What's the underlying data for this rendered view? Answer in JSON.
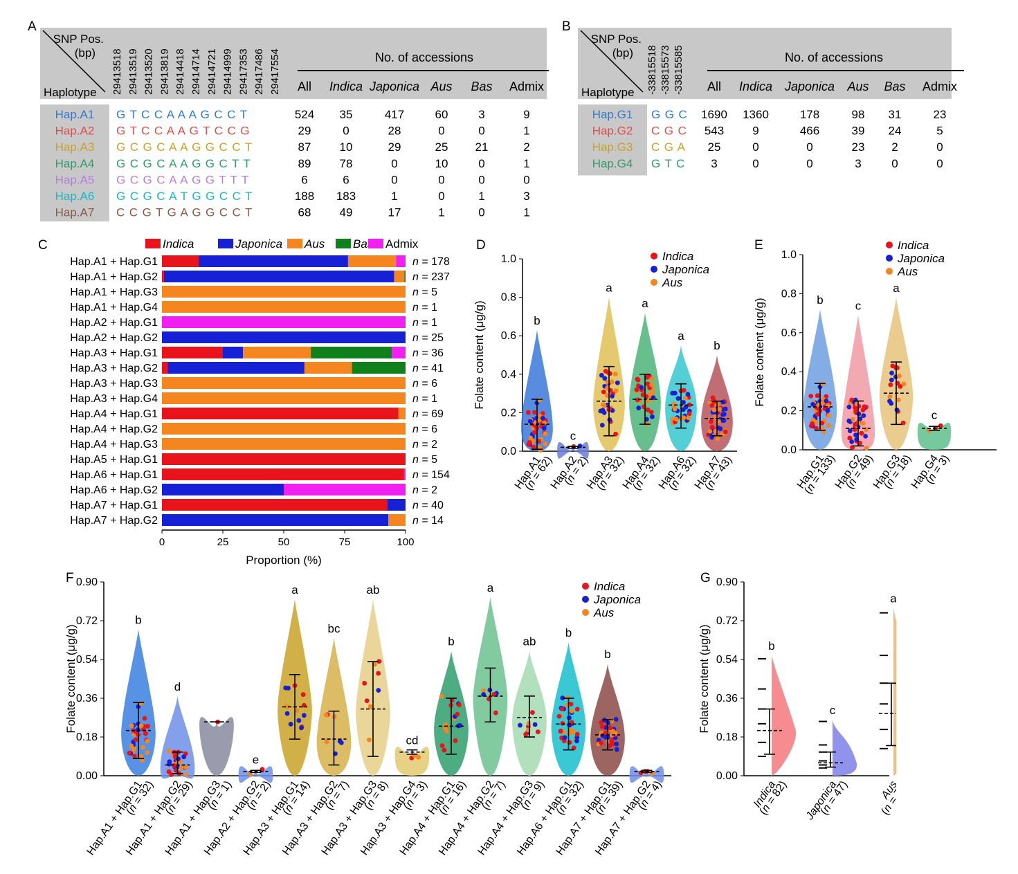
{
  "panel_labels": [
    "A",
    "B",
    "C",
    "D",
    "E",
    "F",
    "G"
  ],
  "legend_italic": [
    "Indica",
    "Japonica",
    "Aus"
  ],
  "colors": {
    "indica": "#e8131b",
    "japonica": "#1620d4",
    "aus": "#f5861f",
    "bas": "#10801a",
    "admix": "#f21ff2",
    "header_gray": "#c8c8c8"
  },
  "tableA": {
    "header_snp": "SNP Pos.",
    "header_bp": "(bp)",
    "header_hap": "Haplotype",
    "positions": [
      "29413518",
      "29413519",
      "29413520",
      "29413819",
      "29414418",
      "29414714",
      "29414721",
      "29414999",
      "29417353",
      "29417486",
      "29417554"
    ],
    "accessions_title": "No. of accessions",
    "columns": [
      "All",
      "Indica",
      "Japonica",
      "Aus",
      "Bas",
      "Admix"
    ],
    "rows": [
      {
        "name": "Hap.A1",
        "color": "#2f7bd4",
        "seq": "G T C C A A A G C C T",
        "vals": [
          "524",
          "35",
          "417",
          "60",
          "3",
          "9"
        ]
      },
      {
        "name": "Hap.A2",
        "color": "#e04d4d",
        "seq": "G T C C A A G T C C G",
        "vals": [
          "29",
          "0",
          "28",
          "0",
          "0",
          "1"
        ]
      },
      {
        "name": "Hap.A3",
        "color": "#c9a227",
        "seq": "G C G C A A G G C C T",
        "vals": [
          "87",
          "10",
          "29",
          "25",
          "21",
          "2"
        ]
      },
      {
        "name": "Hap.A4",
        "color": "#2e9e6b",
        "seq": "G C G C A A G G C T T",
        "vals": [
          "89",
          "78",
          "0",
          "10",
          "0",
          "1"
        ]
      },
      {
        "name": "Hap.A5",
        "color": "#b47fd8",
        "seq": "G C G C A A G G T T T",
        "vals": [
          "6",
          "6",
          "0",
          "0",
          "0",
          "0"
        ]
      },
      {
        "name": "Hap.A6",
        "color": "#17b8c9",
        "seq": "G C G C A T G G C C T",
        "vals": [
          "188",
          "183",
          "1",
          "0",
          "1",
          "3"
        ]
      },
      {
        "name": "Hap.A7",
        "color": "#8b5a4a",
        "seq": "C C G T G A G G C C T",
        "vals": [
          "68",
          "49",
          "17",
          "1",
          "0",
          "1"
        ]
      }
    ]
  },
  "tableB": {
    "header_snp": "SNP Pos.",
    "header_bp": "(bp)",
    "header_hap": "Haplotype",
    "positions": [
      "-33815518",
      "-33815573",
      "-33815585"
    ],
    "accessions_title": "No. of accessions",
    "columns": [
      "All",
      "Indica",
      "Japonica",
      "Aus",
      "Bas",
      "Admix"
    ],
    "rows": [
      {
        "name": "Hap.G1",
        "color": "#2f7bd4",
        "seq": "G G C",
        "vals": [
          "1690",
          "1360",
          "178",
          "98",
          "31",
          "23"
        ]
      },
      {
        "name": "Hap.G2",
        "color": "#e04d4d",
        "seq": "C G C",
        "vals": [
          "543",
          "9",
          "466",
          "39",
          "24",
          "5"
        ]
      },
      {
        "name": "Hap.G3",
        "color": "#c9a227",
        "seq": "C G A",
        "vals": [
          "25",
          "0",
          "0",
          "23",
          "2",
          "0"
        ]
      },
      {
        "name": "Hap.G4",
        "color": "#2e9e6b",
        "seq": "G T C",
        "vals": [
          "3",
          "0",
          "0",
          "3",
          "0",
          "0"
        ]
      }
    ]
  },
  "chart_data": [
    {
      "panel": "C",
      "type": "bar",
      "orientation": "horizontal-stacked",
      "legend": [
        "Indica",
        "Japonica",
        "Aus",
        "Bas",
        "Admix"
      ],
      "xlabel": "Proportion (%)",
      "xlim": [
        0,
        100
      ],
      "xticks": [
        "0",
        "25",
        "50",
        "75",
        "100"
      ],
      "categories": [
        "Hap.A1 + Hap.G1",
        "Hap.A1 + Hap.G2",
        "Hap.A1 + Hap.G3",
        "Hap.A1 + Hap.G4",
        "Hap.A2 + Hap.G1",
        "Hap.A2 + Hap.G2",
        "Hap.A3 + Hap.G1",
        "Hap.A3 + Hap.G2",
        "Hap.A3 + Hap.G3",
        "Hap.A3 + Hap.G4",
        "Hap.A4 + Hap.G1",
        "Hap.A4 + Hap.G2",
        "Hap.A4 + Hap.G3",
        "Hap.A5 + Hap.G1",
        "Hap.A6 + Hap.G1",
        "Hap.A6 + Hap.G2",
        "Hap.A7 + Hap.G1",
        "Hap.A7 + Hap.G2"
      ],
      "n_labels": [
        "178",
        "237",
        "5",
        "1",
        "1",
        "25",
        "36",
        "41",
        "6",
        "1",
        "69",
        "6",
        "2",
        "5",
        "154",
        "2",
        "40",
        "14"
      ],
      "series": [
        {
          "name": "Indica",
          "values": [
            15.2,
            0.8,
            0,
            0,
            0,
            0,
            25,
            2.4,
            0,
            0,
            97.1,
            0,
            0,
            100,
            99.4,
            0,
            92.5,
            0
          ]
        },
        {
          "name": "Japonica",
          "values": [
            61.2,
            94.5,
            0,
            0,
            0,
            100,
            8.3,
            56.1,
            0,
            0,
            0,
            0,
            0,
            0,
            0,
            50,
            7.5,
            92.9
          ]
        },
        {
          "name": "Aus",
          "values": [
            19.7,
            4.2,
            100,
            100,
            0,
            0,
            27.8,
            19.5,
            100,
            100,
            2.9,
            100,
            100,
            0,
            0,
            0,
            0,
            7.1
          ]
        },
        {
          "name": "Bas",
          "values": [
            0,
            0.5,
            0,
            0,
            0,
            0,
            33.3,
            22,
            0,
            0,
            0,
            0,
            0,
            0,
            0,
            0,
            0,
            0
          ]
        },
        {
          "name": "Admix",
          "values": [
            3.9,
            0,
            0,
            0,
            100,
            0,
            5.6,
            0,
            0,
            0,
            0,
            0,
            0,
            0,
            0.6,
            50,
            0,
            0
          ]
        }
      ]
    },
    {
      "panel": "D",
      "type": "scatter",
      "subtype": "violin",
      "ylabel": "Folate content (μg/g)",
      "ylim": [
        0,
        1.0
      ],
      "yticks": [
        "0.0",
        "0.2",
        "0.4",
        "0.6",
        "0.8",
        "1.0"
      ],
      "categories": [
        "Hap.A1",
        "Hap.A2",
        "Hap.A3",
        "Hap.A4",
        "Hap.A6",
        "Hap.A7"
      ],
      "n_values": [
        "62",
        "2",
        "32",
        "32",
        "32",
        "43"
      ],
      "letters": [
        "b",
        "c",
        "a",
        "a",
        "a",
        "b"
      ],
      "means": [
        0.14,
        0.02,
        0.26,
        0.27,
        0.24,
        0.17
      ],
      "sd_low": [
        0.01,
        0.015,
        0.08,
        0.14,
        0.12,
        0.08
      ],
      "sd_high": [
        0.27,
        0.025,
        0.44,
        0.4,
        0.35,
        0.26
      ],
      "maxes": [
        0.63,
        0.03,
        0.8,
        0.72,
        0.55,
        0.5
      ],
      "colors": [
        "#3a78d8",
        "#6b7bd8",
        "#e0bf55",
        "#4cb47a",
        "#37c7cf",
        "#b5545a"
      ]
    },
    {
      "panel": "E",
      "type": "scatter",
      "subtype": "violin",
      "ylabel": "Folate content (μg/g)",
      "ylim": [
        0,
        1.0
      ],
      "yticks": [
        "0.0",
        "0.2",
        "0.4",
        "0.6",
        "0.8",
        "1.0"
      ],
      "categories": [
        "Hap.G1",
        "Hap.G2",
        "Hap.G3",
        "Hap.G4"
      ],
      "n_values": [
        "133",
        "49",
        "18",
        "3"
      ],
      "letters": [
        "b",
        "c",
        "a",
        "c"
      ],
      "means": [
        0.22,
        0.11,
        0.29,
        0.11
      ],
      "sd_low": [
        0.1,
        0.02,
        0.13,
        0.1
      ],
      "sd_high": [
        0.34,
        0.25,
        0.45,
        0.12
      ],
      "maxes": [
        0.72,
        0.69,
        0.78,
        0.13
      ],
      "colors": [
        "#6f9fe0",
        "#f09aa3",
        "#e6c47a",
        "#5ec08c"
      ]
    },
    {
      "panel": "F",
      "type": "scatter",
      "subtype": "violin",
      "ylabel": "Folate content (μg/g)",
      "ylim": [
        0,
        0.9
      ],
      "yticks": [
        "0.00",
        "0.18",
        "0.36",
        "0.54",
        "0.72",
        "0.90"
      ],
      "categories": [
        "Hap.A1 + Hap.G1",
        "Hap.A1 + Hap.G2",
        "Hap.A1 + Hap.G3",
        "Hap.A2 + Hap.G2",
        "Hap.A3 + Hap.G1",
        "Hap.A3 + Hap.G2",
        "Hap.A3 + Hap.G3",
        "Hap.A3 + Hap.G4",
        "Hap.A4 + Hap.G1",
        "Hap.A4 + Hap.G2",
        "Hap.A4 + Hap.G3",
        "Hap.A6 + Hap.G1",
        "Hap.A7 + Hap.G1",
        "Hap.A7 + Hap.G2"
      ],
      "n_values": [
        "32",
        "29",
        "1",
        "2",
        "14",
        "7",
        "8",
        "3",
        "16",
        "7",
        "9",
        "32",
        "39",
        "4"
      ],
      "letters": [
        "b",
        "d",
        "",
        "e",
        "a",
        "bc",
        "ab",
        "cd",
        "b",
        "a",
        "ab",
        "b",
        "b",
        ""
      ],
      "means": [
        0.21,
        0.05,
        0.25,
        0.02,
        0.32,
        0.17,
        0.31,
        0.11,
        0.23,
        0.37,
        0.27,
        0.24,
        0.19,
        0.02
      ],
      "sd_low": [
        0.08,
        0.01,
        0.25,
        0.015,
        0.17,
        0.05,
        0.09,
        0.1,
        0.1,
        0.25,
        0.18,
        0.12,
        0.12,
        0.015
      ],
      "sd_high": [
        0.34,
        0.11,
        0.25,
        0.025,
        0.47,
        0.3,
        0.53,
        0.12,
        0.36,
        0.5,
        0.37,
        0.36,
        0.26,
        0.025
      ],
      "maxes": [
        0.68,
        0.37,
        0.25,
        0.03,
        0.82,
        0.64,
        0.82,
        0.12,
        0.58,
        0.83,
        0.58,
        0.62,
        0.52,
        0.03
      ],
      "colors": [
        "#3a7fe0",
        "#6e8fe6",
        "#8a8aa0",
        "#6e8fe6",
        "#c9a227",
        "#d6b24a",
        "#e7cf88",
        "#e2c96e",
        "#2e9e6b",
        "#6cc18e",
        "#a5d9b0",
        "#17c0cc",
        "#8b4a46",
        "#6e8fe6"
      ]
    },
    {
      "panel": "G",
      "type": "scatter",
      "subtype": "half-violin",
      "ylabel": "Folate content (μg/g)",
      "ylim": [
        0,
        0.9
      ],
      "yticks": [
        "0.00",
        "0.18",
        "0.36",
        "0.54",
        "0.72",
        "0.90"
      ],
      "categories": [
        "Indica",
        "Japonica",
        "Aus"
      ],
      "n_values": [
        "82",
        "47",
        "74"
      ],
      "letters": [
        "b",
        "c",
        "a"
      ],
      "means": [
        0.21,
        0.06,
        0.29
      ],
      "sd_low": [
        0.1,
        0.04,
        0.14
      ],
      "sd_high": [
        0.31,
        0.11,
        0.43
      ],
      "maxes": [
        0.56,
        0.26,
        0.78
      ],
      "colors": [
        "#f4777c",
        "#7e7fe8",
        "#f7b06b"
      ]
    }
  ]
}
